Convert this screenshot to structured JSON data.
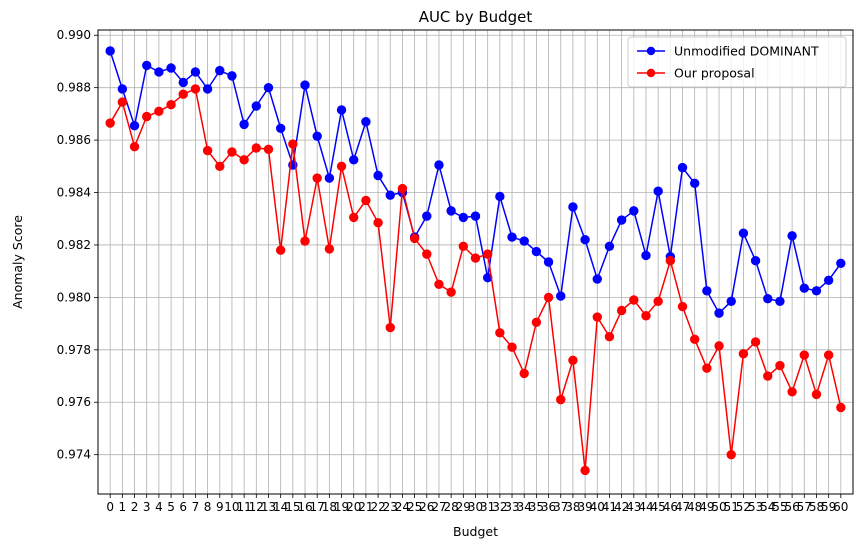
{
  "chart_data": {
    "type": "line",
    "title": "AUC by Budget",
    "xlabel": "Budget",
    "ylabel": "Anomaly Score",
    "x": [
      0,
      1,
      2,
      3,
      4,
      5,
      6,
      7,
      8,
      9,
      10,
      11,
      12,
      13,
      14,
      15,
      16,
      17,
      18,
      19,
      20,
      21,
      22,
      23,
      24,
      25,
      26,
      27,
      28,
      29,
      30,
      31,
      32,
      33,
      34,
      35,
      36,
      37,
      38,
      39,
      40,
      41,
      42,
      43,
      44,
      45,
      46,
      47,
      48,
      49,
      50,
      51,
      52,
      53,
      54,
      55,
      56,
      57,
      58,
      59,
      60
    ],
    "x_tick_labels": [
      "0",
      "1",
      "2",
      "3",
      "4",
      "5",
      "6",
      "7",
      "8",
      "9",
      "10",
      "11",
      "12",
      "13",
      "14",
      "15",
      "16",
      "17",
      "18",
      "19",
      "20",
      "21",
      "22",
      "23",
      "24",
      "25",
      "26",
      "27",
      "28",
      "29",
      "30",
      "31",
      "32",
      "33",
      "34",
      "35",
      "36",
      "37",
      "38",
      "39",
      "40",
      "41",
      "42",
      "43",
      "44",
      "45",
      "46",
      "47",
      "48",
      "49",
      "50",
      "51",
      "52",
      "53",
      "54",
      "55",
      "56",
      "57",
      "58",
      "59",
      "60"
    ],
    "y_ticks": [
      0.974,
      0.976,
      0.978,
      0.98,
      0.982,
      0.984,
      0.986,
      0.988,
      0.99
    ],
    "y_tick_labels": [
      "0.974",
      "0.976",
      "0.978",
      "0.980",
      "0.982",
      "0.984",
      "0.986",
      "0.988",
      "0.990"
    ],
    "xlim": [
      -1,
      61
    ],
    "ylim": [
      0.9725,
      0.9902
    ],
    "grid": true,
    "legend_position": "top-right",
    "series": [
      {
        "name": "Unmodified DOMINANT",
        "color": "#0000ff",
        "marker": "circle",
        "values": [
          0.9894,
          0.98795,
          0.98655,
          0.98885,
          0.9886,
          0.98875,
          0.9882,
          0.9886,
          0.98795,
          0.98865,
          0.98845,
          0.9866,
          0.9873,
          0.988,
          0.98645,
          0.98505,
          0.9881,
          0.98615,
          0.98455,
          0.98715,
          0.98525,
          0.9867,
          0.98465,
          0.9839,
          0.984,
          0.9823,
          0.9831,
          0.98505,
          0.9833,
          0.98305,
          0.9831,
          0.98075,
          0.98385,
          0.9823,
          0.98215,
          0.98175,
          0.98135,
          0.98005,
          0.98345,
          0.9822,
          0.9807,
          0.98195,
          0.98295,
          0.9833,
          0.9816,
          0.98405,
          0.98155,
          0.98495,
          0.98435,
          0.98025,
          0.9794,
          0.97985,
          0.98245,
          0.9814,
          0.97995,
          0.97985,
          0.98235,
          0.98035,
          0.98025,
          0.98065,
          0.9813
        ]
      },
      {
        "name": "Our proposal",
        "color": "#ff0000",
        "marker": "circle",
        "values": [
          0.98665,
          0.98745,
          0.98575,
          0.9869,
          0.9871,
          0.98735,
          0.98775,
          0.98795,
          0.9856,
          0.985,
          0.98555,
          0.98525,
          0.9857,
          0.98565,
          0.9818,
          0.98585,
          0.98215,
          0.98455,
          0.98185,
          0.985,
          0.98305,
          0.9837,
          0.98285,
          0.97885,
          0.98415,
          0.98225,
          0.98165,
          0.9805,
          0.9802,
          0.98195,
          0.9815,
          0.98165,
          0.97865,
          0.9781,
          0.9771,
          0.97905,
          0.98,
          0.9761,
          0.9776,
          0.9734,
          0.97925,
          0.9785,
          0.9795,
          0.9799,
          0.9793,
          0.97985,
          0.9814,
          0.97965,
          0.9784,
          0.9773,
          0.97815,
          0.974,
          0.97785,
          0.9783,
          0.977,
          0.9774,
          0.9764,
          0.9778,
          0.9763,
          0.9778,
          0.9758
        ]
      }
    ]
  }
}
